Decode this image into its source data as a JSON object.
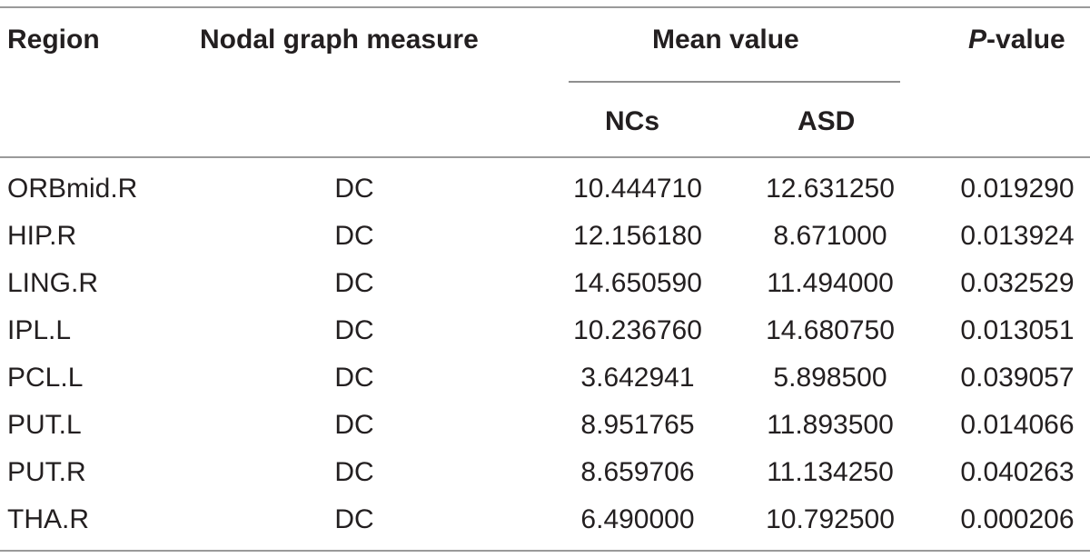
{
  "table": {
    "headers": {
      "region": "Region",
      "measure": "Nodal graph measure",
      "mean_value": "Mean value",
      "p_value_letter": "P",
      "p_value_rest": "-value",
      "ncs": "NCs",
      "asd": "ASD"
    },
    "rows": [
      {
        "region": "ORBmid.R",
        "measure": "DC",
        "ncs": "10.444710",
        "asd": "12.631250",
        "p": "0.019290"
      },
      {
        "region": "HIP.R",
        "measure": "DC",
        "ncs": "12.156180",
        "asd": "8.671000",
        "p": "0.013924"
      },
      {
        "region": "LING.R",
        "measure": "DC",
        "ncs": "14.650590",
        "asd": "11.494000",
        "p": "0.032529"
      },
      {
        "region": "IPL.L",
        "measure": "DC",
        "ncs": "10.236760",
        "asd": "14.680750",
        "p": "0.013051"
      },
      {
        "region": "PCL.L",
        "measure": "DC",
        "ncs": "3.642941",
        "asd": "5.898500",
        "p": "0.039057"
      },
      {
        "region": "PUT.L",
        "measure": "DC",
        "ncs": "8.951765",
        "asd": "11.893500",
        "p": "0.014066"
      },
      {
        "region": "PUT.R",
        "measure": "DC",
        "ncs": "8.659706",
        "asd": "11.134250",
        "p": "0.040263"
      },
      {
        "region": "THA.R",
        "measure": "DC",
        "ncs": "6.490000",
        "asd": "10.792500",
        "p": "0.000206"
      }
    ]
  }
}
